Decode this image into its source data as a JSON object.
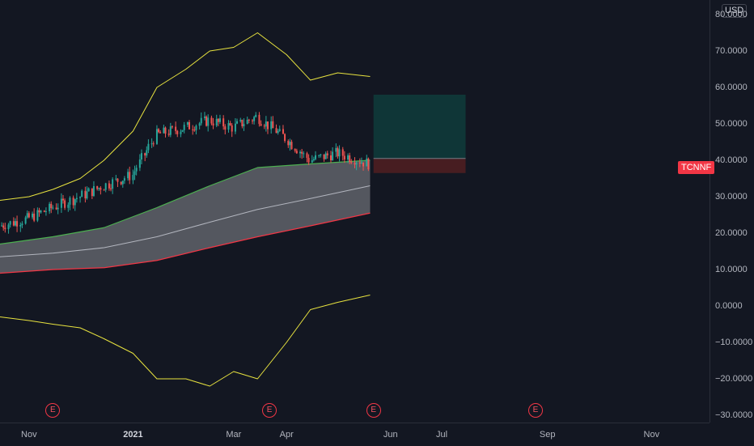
{
  "price_scale": {
    "currency": "USD",
    "ticks": [
      "80.0000",
      "70.0000",
      "60.0000",
      "50.0000",
      "40.0000",
      "30.0000",
      "20.0000",
      "10.0000",
      "0.0000",
      "−10.0000",
      "−20.0000",
      "−30.0000"
    ]
  },
  "time_scale": {
    "ticks": [
      {
        "label": "Nov",
        "bold": false
      },
      {
        "label": "2021",
        "bold": true
      },
      {
        "label": "Mar",
        "bold": false
      },
      {
        "label": "Apr",
        "bold": false
      },
      {
        "label": "Jun",
        "bold": false
      },
      {
        "label": "Jul",
        "bold": false
      },
      {
        "label": "Sep",
        "bold": false
      },
      {
        "label": "Nov",
        "bold": false
      }
    ]
  },
  "symbol_tag": {
    "label": "TCNNF",
    "color": "#f23645"
  },
  "earnings": {
    "label": "E",
    "count": 4
  },
  "colors": {
    "background": "#131722",
    "up_candle": "#26a69a",
    "down_candle": "#ef5350",
    "outer_band": "#e8e33f",
    "inner_upper": "#4caf50",
    "inner_lower": "#f23645",
    "basis": "#b2b5be",
    "profit_zone": "#0f3a3a",
    "loss_zone": "#4a1d22"
  },
  "chart_data": {
    "type": "line",
    "title": "",
    "xlabel": "",
    "ylabel": "",
    "x_range": [
      "2020-10-15",
      "2021-12-05"
    ],
    "ylim": [
      -32,
      84
    ],
    "price_axis_ticks": [
      80,
      70,
      60,
      50,
      40,
      30,
      20,
      10,
      0,
      -10,
      -20,
      -30
    ],
    "time_axis_ticks": [
      "Nov",
      "2021",
      "Mar",
      "Apr",
      "Jun",
      "Jul",
      "Sep",
      "Nov"
    ],
    "earnings_dates": [
      "2020-11-15",
      "2021-03-22",
      "2021-05-22",
      "2021-08-25"
    ],
    "series": [
      {
        "kind": "envelope",
        "x": [
          "2020-10-15",
          "2020-11-01",
          "2020-11-15",
          "2020-12-01",
          "2020-12-15",
          "2021-01-01",
          "2021-01-15",
          "2021-02-01",
          "2021-02-15",
          "2021-03-01",
          "2021-03-15",
          "2021-04-01",
          "2021-04-15",
          "2021-05-01",
          "2021-05-20"
        ],
        "values": [
          29,
          30,
          32,
          35,
          40,
          48,
          60,
          65,
          70,
          71,
          75,
          69,
          62,
          64,
          63
        ]
      },
      {
        "kind": "envelope",
        "x": [
          "2020-10-15",
          "2020-11-01",
          "2020-11-15",
          "2020-12-01",
          "2020-12-15",
          "2021-01-01",
          "2021-01-15",
          "2021-02-01",
          "2021-02-15",
          "2021-03-01",
          "2021-03-15",
          "2021-04-01",
          "2021-04-15",
          "2021-05-01",
          "2021-05-20"
        ],
        "values": [
          -3,
          -4,
          -5,
          -6,
          -9,
          -13,
          -20,
          -20,
          -22,
          -18,
          -20,
          -10,
          -1,
          1,
          3
        ]
      },
      {
        "kind": "channel-upper",
        "x": [
          "2020-10-15",
          "2020-11-15",
          "2020-12-15",
          "2021-01-15",
          "2021-02-15",
          "2021-03-15",
          "2021-04-15",
          "2021-05-20"
        ],
        "values": [
          17,
          19,
          21.5,
          27,
          33,
          38,
          39,
          40
        ]
      },
      {
        "kind": "channel-basis",
        "x": [
          "2020-10-15",
          "2020-11-15",
          "2020-12-15",
          "2021-01-15",
          "2021-02-15",
          "2021-03-15",
          "2021-04-15",
          "2021-05-20"
        ],
        "values": [
          13.5,
          14.5,
          16,
          19,
          23,
          26.5,
          29.5,
          33
        ]
      },
      {
        "kind": "channel-lower",
        "x": [
          "2020-10-15",
          "2020-11-15",
          "2020-12-15",
          "2021-01-15",
          "2021-02-15",
          "2021-03-15",
          "2021-04-15",
          "2021-05-20"
        ],
        "values": [
          9,
          10,
          10.5,
          12.5,
          16,
          19,
          22,
          25.5
        ]
      },
      {
        "kind": "price",
        "x": [
          "2020-10-15",
          "2020-11-01",
          "2020-11-15",
          "2020-12-01",
          "2020-12-15",
          "2021-01-01",
          "2021-01-15",
          "2021-02-01",
          "2021-02-15",
          "2021-03-01",
          "2021-03-15",
          "2021-04-01",
          "2021-04-15",
          "2021-05-01",
          "2021-05-20"
        ],
        "values": [
          22,
          24,
          27,
          30,
          33,
          36,
          47,
          49,
          51,
          49,
          52,
          46,
          40,
          42,
          39
        ]
      }
    ],
    "position": {
      "entry": 40.5,
      "target": 58,
      "stop": 36.5,
      "start": "2021-05-22",
      "end": "2021-07-15"
    }
  }
}
